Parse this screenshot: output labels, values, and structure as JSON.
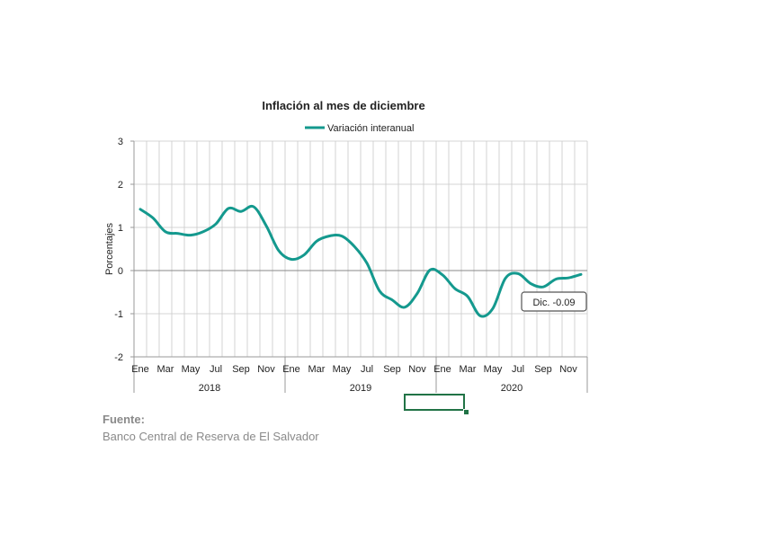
{
  "chart_data": {
    "type": "line",
    "title": "Inflación al mes de diciembre",
    "ylabel": "Porcentajes",
    "ylim": [
      -2,
      3
    ],
    "yticks": [
      -2,
      -1,
      0,
      1,
      2,
      3
    ],
    "grid": true,
    "legend": "top-center",
    "x": [
      "Ene 2018",
      "Feb 2018",
      "Mar 2018",
      "Abr 2018",
      "May 2018",
      "Jun 2018",
      "Jul 2018",
      "Ago 2018",
      "Sep 2018",
      "Oct 2018",
      "Nov 2018",
      "Dic 2018",
      "Ene 2019",
      "Feb 2019",
      "Mar 2019",
      "Abr 2019",
      "May 2019",
      "Jun 2019",
      "Jul 2019",
      "Ago 2019",
      "Sep 2019",
      "Oct 2019",
      "Nov 2019",
      "Dic 2019",
      "Ene 2020",
      "Feb 2020",
      "Mar 2020",
      "Abr 2020",
      "May 2020",
      "Jun 2020",
      "Jul 2020",
      "Ago 2020",
      "Sep 2020",
      "Oct 2020",
      "Nov 2020",
      "Dic 2020"
    ],
    "month_labels": [
      "Ene",
      "Mar",
      "May",
      "Jul",
      "Sep",
      "Nov",
      "Ene",
      "Mar",
      "May",
      "Jul",
      "Sep",
      "Nov",
      "Ene",
      "Mar",
      "May",
      "Jul",
      "Sep",
      "Nov"
    ],
    "year_labels": [
      "2018",
      "2019",
      "2020"
    ],
    "series": [
      {
        "name": "Variación interanual",
        "color": "#14998e",
        "values": [
          1.42,
          1.22,
          0.9,
          0.86,
          0.82,
          0.9,
          1.08,
          1.44,
          1.37,
          1.48,
          1.04,
          0.46,
          0.26,
          0.36,
          0.68,
          0.8,
          0.8,
          0.56,
          0.17,
          -0.47,
          -0.68,
          -0.85,
          -0.53,
          0.01,
          -0.1,
          -0.42,
          -0.6,
          -1.05,
          -0.88,
          -0.18,
          -0.07,
          -0.3,
          -0.38,
          -0.2,
          -0.17,
          -0.09
        ]
      }
    ],
    "annotations": [
      {
        "text": "Dic. -0.09",
        "x": "Dic 2020",
        "y": -0.09
      }
    ]
  },
  "source": {
    "heading": "Fuente:",
    "text": "Banco Central de Reserva de El Salvador"
  }
}
